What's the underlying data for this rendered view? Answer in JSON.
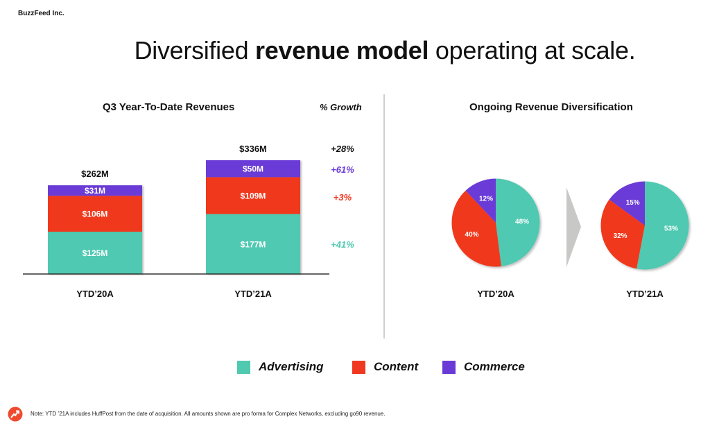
{
  "header": {
    "company": "BuzzFeed Inc.",
    "headline_pre": "Diversified ",
    "headline_bold": "revenue model",
    "headline_post": " operating at scale."
  },
  "colors": {
    "advertising": "#50c9b1",
    "content": "#f0371f",
    "commerce": "#6a3ad6",
    "arrow": "#c8c8c6",
    "divider": "#cfcfcf",
    "logo": "#ef4a2f"
  },
  "legend": [
    {
      "key": "advertising",
      "label": "Advertising"
    },
    {
      "key": "content",
      "label": "Content"
    },
    {
      "key": "commerce",
      "label": "Commerce"
    }
  ],
  "footnote": "Note: YTD ’21A includes HuffPost from the date of acquisition. All amounts shown are pro forma for Complex Networks, excluding go90 revenue.",
  "chart_data": [
    {
      "type": "bar",
      "stacked": true,
      "title": "Q3 Year-To-Date Revenues",
      "xlabel": "",
      "ylabel": "",
      "units": "$M",
      "categories": [
        "YTD’20A",
        "YTD’21A"
      ],
      "series": [
        {
          "name": "Advertising",
          "key": "advertising",
          "values": [
            125,
            177
          ],
          "labels": [
            "$125M",
            "$177M"
          ]
        },
        {
          "name": "Content",
          "key": "content",
          "values": [
            106,
            109
          ],
          "labels": [
            "$106M",
            "$109M"
          ]
        },
        {
          "name": "Commerce",
          "key": "commerce",
          "values": [
            31,
            50
          ],
          "labels": [
            "$31M",
            "$50M"
          ]
        }
      ],
      "totals": [
        262,
        336
      ],
      "total_labels": [
        "$262M",
        "$336M"
      ],
      "ylim": [
        0,
        336
      ],
      "grid": false,
      "growth": {
        "header": "% Growth",
        "total": "+28%",
        "advertising": "+41%",
        "content": "+3%",
        "commerce": "+61%"
      }
    },
    {
      "type": "pie",
      "title": "Ongoing Revenue Diversification",
      "pies": [
        {
          "label": "YTD’20A",
          "slices": [
            {
              "name": "Advertising",
              "key": "advertising",
              "value": 48,
              "label": "48%"
            },
            {
              "name": "Content",
              "key": "content",
              "value": 40,
              "label": "40%"
            },
            {
              "name": "Commerce",
              "key": "commerce",
              "value": 12,
              "label": "12%"
            }
          ]
        },
        {
          "label": "YTD’21A",
          "slices": [
            {
              "name": "Advertising",
              "key": "advertising",
              "value": 53,
              "label": "53%"
            },
            {
              "name": "Content",
              "key": "content",
              "value": 32,
              "label": "32%"
            },
            {
              "name": "Commerce",
              "key": "commerce",
              "value": 15,
              "label": "15%"
            }
          ]
        }
      ]
    }
  ]
}
